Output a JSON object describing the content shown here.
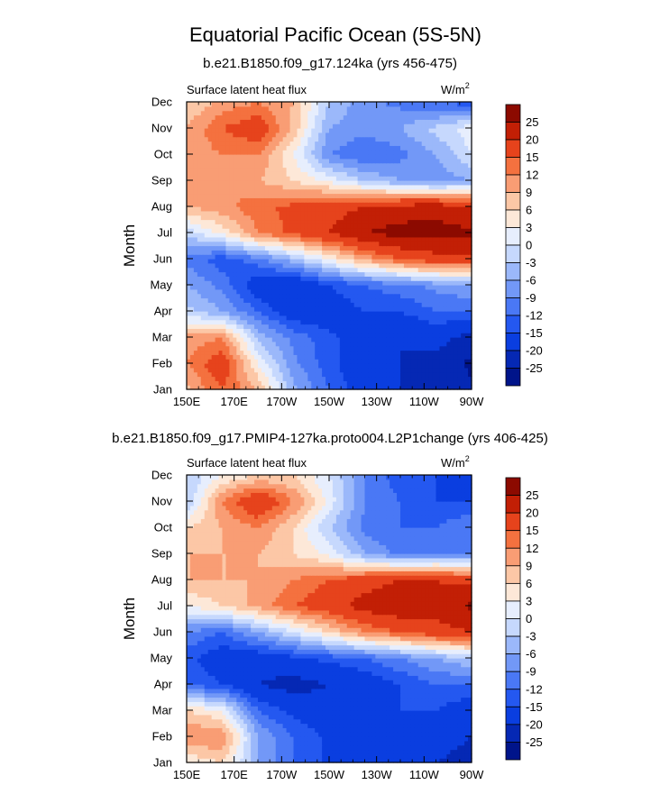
{
  "title": "Equatorial Pacific Ocean (5S-5N)",
  "chart_data": [
    {
      "type": "heatmap",
      "subtitle": "b.e21.B1850.f09_g17.124ka (yrs 456-475)",
      "left_label": "Surface latent heat flux",
      "units_base": "W/m",
      "units_exp": "2",
      "ylabel": "Month",
      "xlabel": "",
      "x_ticks": [
        "150E",
        "170E",
        "170W",
        "150W",
        "130W",
        "110W",
        "90W"
      ],
      "y_ticks": [
        "Jan",
        "Feb",
        "Mar",
        "Apr",
        "May",
        "Jun",
        "Jul",
        "Aug",
        "Sep",
        "Oct",
        "Nov",
        "Dec"
      ],
      "xlim_deg_east": [
        150,
        270
      ],
      "colorbar_labels": [
        "25",
        "20",
        "15",
        "12",
        "9",
        "6",
        "3",
        "0",
        "-3",
        "-6",
        "-9",
        "-12",
        "-15",
        "-20",
        "-25"
      ],
      "grid_lons": [
        150,
        165,
        180,
        195,
        210,
        225,
        240,
        255,
        270
      ],
      "grid_values": [
        [
          8,
          15,
          9,
          -5,
          -12,
          -18,
          -20,
          -22,
          -24
        ],
        [
          12,
          18,
          3,
          -8,
          -14,
          -18,
          -20,
          -22,
          -26
        ],
        [
          10,
          12,
          -4,
          -10,
          -14,
          -18,
          -20,
          -18,
          -22
        ],
        [
          -2,
          -6,
          -12,
          -18,
          -18,
          -15,
          -15,
          -12,
          -12
        ],
        [
          -6,
          -10,
          -18,
          -20,
          -15,
          -12,
          -10,
          -8,
          -6
        ],
        [
          -10,
          -14,
          -10,
          -4,
          3,
          10,
          15,
          18,
          18
        ],
        [
          -2,
          4,
          12,
          16,
          20,
          25,
          27,
          27,
          26
        ],
        [
          9,
          11,
          14,
          16,
          18,
          20,
          22,
          23,
          20
        ],
        [
          12,
          12,
          9,
          6,
          2,
          -3,
          -6,
          -8,
          -6
        ],
        [
          10,
          12,
          12,
          3,
          -9,
          -12,
          -10,
          -6,
          0
        ],
        [
          9,
          15,
          18,
          8,
          -6,
          -8,
          -6,
          -2,
          2
        ],
        [
          6,
          10,
          12,
          9,
          -3,
          -8,
          -10,
          -12,
          -14
        ]
      ]
    },
    {
      "type": "heatmap",
      "subtitle": "b.e21.B1850.f09_g17.PMIP4-127ka.proto004.L2P1change (yrs 406-425)",
      "left_label": "Surface latent heat flux",
      "units_base": "W/m",
      "units_exp": "2",
      "ylabel": "Month",
      "xlabel": "",
      "x_ticks": [
        "150E",
        "170E",
        "170W",
        "150W",
        "130W",
        "110W",
        "90W"
      ],
      "y_ticks": [
        "Jan",
        "Feb",
        "Mar",
        "Apr",
        "May",
        "Jun",
        "Jul",
        "Aug",
        "Sep",
        "Oct",
        "Nov",
        "Dec"
      ],
      "xlim_deg_east": [
        150,
        270
      ],
      "colorbar_labels": [
        "25",
        "20",
        "15",
        "12",
        "9",
        "6",
        "3",
        "0",
        "-3",
        "-6",
        "-9",
        "-12",
        "-15",
        "-20",
        "-25"
      ],
      "grid_lons": [
        150,
        165,
        180,
        195,
        210,
        225,
        240,
        255,
        270
      ],
      "grid_values": [
        [
          3,
          6,
          -6,
          -12,
          -16,
          -18,
          -20,
          -20,
          -22
        ],
        [
          12,
          12,
          -6,
          -12,
          -16,
          -18,
          -20,
          -18,
          -20
        ],
        [
          6,
          3,
          -12,
          -16,
          -18,
          -18,
          -15,
          -15,
          -18
        ],
        [
          -12,
          -15,
          -20,
          -22,
          -20,
          -18,
          -15,
          -12,
          -12
        ],
        [
          -14,
          -18,
          -18,
          -16,
          -14,
          -12,
          -9,
          -6,
          -3
        ],
        [
          -9,
          -12,
          -6,
          0,
          6,
          12,
          15,
          18,
          20
        ],
        [
          3,
          6,
          10,
          15,
          18,
          22,
          24,
          22,
          26
        ],
        [
          9,
          9,
          9,
          12,
          15,
          18,
          20,
          20,
          18
        ],
        [
          9,
          9,
          9,
          6,
          2,
          -6,
          -10,
          -9,
          -9
        ],
        [
          6,
          9,
          12,
          6,
          -3,
          -10,
          -12,
          -12,
          -9
        ],
        [
          -3,
          12,
          20,
          12,
          2,
          -9,
          -12,
          -15,
          -15
        ],
        [
          -3,
          3,
          6,
          6,
          0,
          -9,
          -14,
          -15,
          -18
        ]
      ]
    }
  ]
}
